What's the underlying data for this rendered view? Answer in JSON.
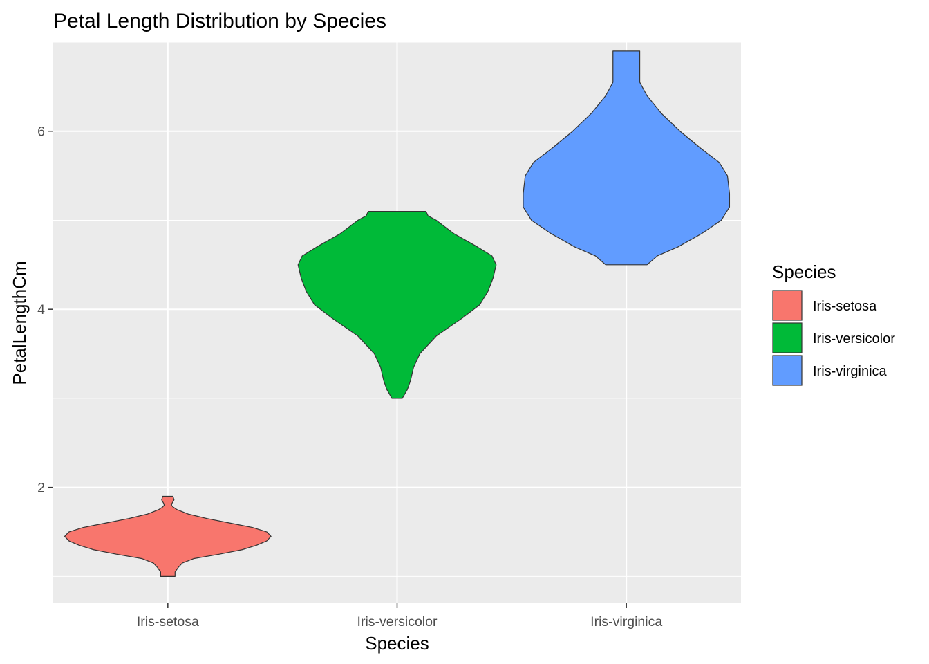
{
  "chart_data": {
    "type": "violin",
    "title": "Petal Length Distribution by Species",
    "xlabel": "Species",
    "ylabel": "PetalLengthCm",
    "categories": [
      "Iris-setosa",
      "Iris-versicolor",
      "Iris-virginica"
    ],
    "ylim": [
      0.7,
      7.0
    ],
    "yticks": [
      2,
      4,
      6
    ],
    "ytick_labels": [
      "2",
      "4",
      "6"
    ],
    "grid": true,
    "legend": {
      "title": "Species",
      "position": "right",
      "entries": [
        "Iris-setosa",
        "Iris-versicolor",
        "Iris-virginica"
      ]
    },
    "colors": {
      "Iris-setosa": "#F8766D",
      "Iris-versicolor": "#00BA38",
      "Iris-virginica": "#619CFF",
      "panel": "#EBEBEB",
      "grid": "#FFFFFF",
      "outline": "#333333"
    },
    "series": [
      {
        "name": "Iris-setosa",
        "min": 1.0,
        "max": 1.9,
        "profile": [
          [
            1.0,
            0.07
          ],
          [
            1.05,
            0.07
          ],
          [
            1.1,
            0.1
          ],
          [
            1.15,
            0.14
          ],
          [
            1.2,
            0.25
          ],
          [
            1.25,
            0.5
          ],
          [
            1.3,
            0.72
          ],
          [
            1.35,
            0.86
          ],
          [
            1.4,
            0.96
          ],
          [
            1.45,
            1.0
          ],
          [
            1.5,
            0.96
          ],
          [
            1.55,
            0.82
          ],
          [
            1.6,
            0.6
          ],
          [
            1.65,
            0.38
          ],
          [
            1.7,
            0.2
          ],
          [
            1.75,
            0.09
          ],
          [
            1.78,
            0.05
          ],
          [
            1.8,
            0.035
          ],
          [
            1.82,
            0.04
          ],
          [
            1.86,
            0.06
          ],
          [
            1.9,
            0.05
          ]
        ]
      },
      {
        "name": "Iris-versicolor",
        "min": 3.0,
        "max": 5.1,
        "profile": [
          [
            3.0,
            0.05
          ],
          [
            3.1,
            0.1
          ],
          [
            3.2,
            0.13
          ],
          [
            3.35,
            0.16
          ],
          [
            3.5,
            0.22
          ],
          [
            3.7,
            0.38
          ],
          [
            3.9,
            0.63
          ],
          [
            4.05,
            0.8
          ],
          [
            4.2,
            0.88
          ],
          [
            4.35,
            0.93
          ],
          [
            4.5,
            0.96
          ],
          [
            4.6,
            0.92
          ],
          [
            4.7,
            0.78
          ],
          [
            4.85,
            0.55
          ],
          [
            5.0,
            0.38
          ],
          [
            5.05,
            0.3
          ],
          [
            5.1,
            0.28
          ]
        ]
      },
      {
        "name": "Iris-virginica",
        "min": 4.5,
        "max": 6.9,
        "profile": [
          [
            4.5,
            0.2
          ],
          [
            4.6,
            0.3
          ],
          [
            4.7,
            0.5
          ],
          [
            4.85,
            0.73
          ],
          [
            5.0,
            0.92
          ],
          [
            5.15,
            1.0
          ],
          [
            5.3,
            1.0
          ],
          [
            5.5,
            0.98
          ],
          [
            5.65,
            0.9
          ],
          [
            5.8,
            0.73
          ],
          [
            6.0,
            0.52
          ],
          [
            6.2,
            0.34
          ],
          [
            6.4,
            0.2
          ],
          [
            6.55,
            0.13
          ],
          [
            6.7,
            0.13
          ],
          [
            6.8,
            0.13
          ],
          [
            6.9,
            0.13
          ]
        ]
      }
    ]
  }
}
